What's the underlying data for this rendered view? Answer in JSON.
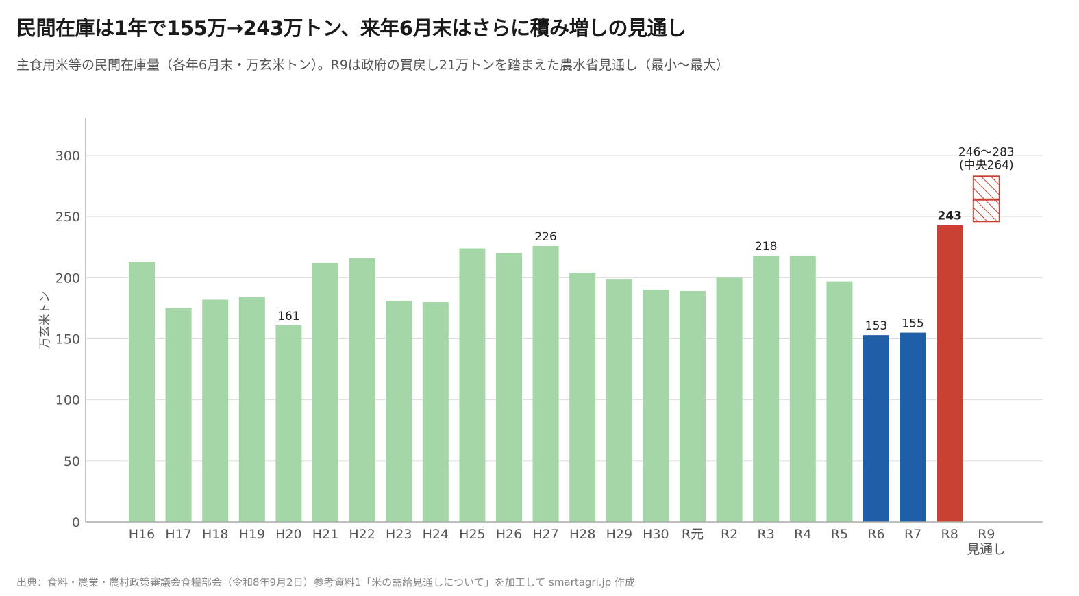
{
  "title": "民間在庫は1年で155万→243万トン、来年6月末はさらに積み増しの見通し",
  "subtitle": "主食用米等の民間在庫量（各年6月末・万玄米トン）。R9は政府の買戻し21万トンを踏まえた農水省見通し（最小〜最大）",
  "source": "出典：食料・農業・農村政策審議会食糧部会（令和8年9月2日）参考資料1「米の需給見通しについて」を加工して smartagri.jp 作成",
  "colors": {
    "green": "#a5d6a7",
    "blue": "#1f5fa8",
    "red": "#c84132",
    "grid": "#dddddd",
    "axis": "#aaaaaa"
  },
  "chart_data": {
    "type": "bar",
    "ylabel": "万玄米トン",
    "ylim": [
      0,
      330
    ],
    "yticks": [
      0,
      50,
      100,
      150,
      200,
      250,
      300
    ],
    "grid": true,
    "categories": [
      "H16",
      "H17",
      "H18",
      "H19",
      "H20",
      "H21",
      "H22",
      "H23",
      "H24",
      "H25",
      "H26",
      "H27",
      "H28",
      "H29",
      "H30",
      "R元",
      "R2",
      "R3",
      "R4",
      "R5",
      "R6",
      "R7",
      "R8",
      "R9\n見通し"
    ],
    "values": [
      213,
      175,
      182,
      184,
      161,
      212,
      216,
      181,
      180,
      224,
      220,
      226,
      204,
      199,
      190,
      189,
      200,
      218,
      218,
      197,
      153,
      155,
      243,
      null
    ],
    "bar_colors": [
      "green",
      "green",
      "green",
      "green",
      "green",
      "green",
      "green",
      "green",
      "green",
      "green",
      "green",
      "green",
      "green",
      "green",
      "green",
      "green",
      "green",
      "green",
      "green",
      "green",
      "blue",
      "blue",
      "red",
      null
    ],
    "data_labels": [
      {
        "category": "H20",
        "text": "161",
        "bold": false
      },
      {
        "category": "H27",
        "text": "226",
        "bold": false
      },
      {
        "category": "R3",
        "text": "218",
        "bold": false
      },
      {
        "category": "R6",
        "text": "153",
        "bold": false
      },
      {
        "category": "R7",
        "text": "155",
        "bold": false
      },
      {
        "category": "R8",
        "text": "243",
        "bold": true
      }
    ],
    "forecast": {
      "category": "R9\n見通し",
      "min": 246,
      "max": 283,
      "center": 264,
      "label_line1": "246〜283",
      "label_line2": "(中央264)"
    }
  }
}
